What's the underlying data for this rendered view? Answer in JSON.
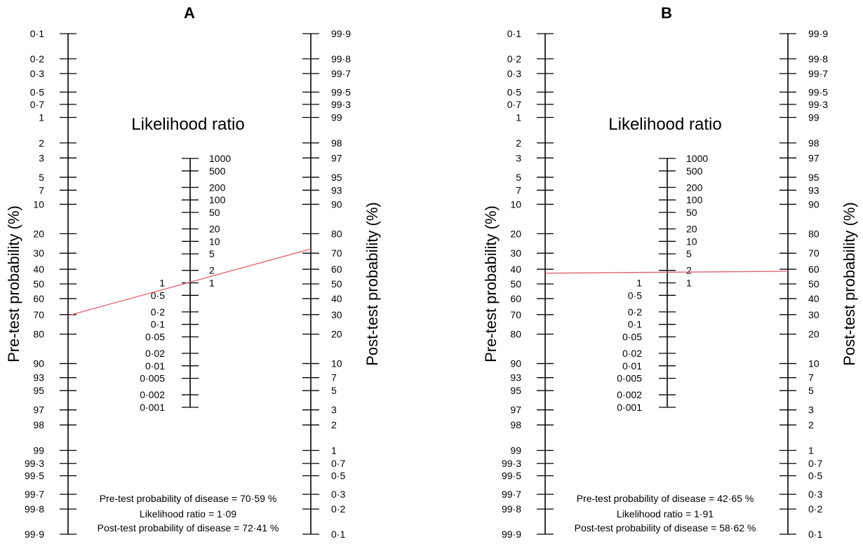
{
  "panels": [
    {
      "panel_label": "A",
      "lr_title": "Likelihood ratio",
      "left_axis_label": "Pre-test probability (%)",
      "right_axis_label": "Post-test probability (%)",
      "results": {
        "pretest_label": "Pre-test probability of disease",
        "pretest_value": "70·59 %",
        "lr_label": "Likelihood ratio",
        "lr_value": "1·09",
        "posttest_label": "Post-test probability of disease",
        "posttest_value": "72·41 %"
      },
      "line": {
        "pretest": 70.59,
        "likelihood_ratio": 1.09,
        "posttest": 72.41
      }
    },
    {
      "panel_label": "B",
      "lr_title": "Likelihood ratio",
      "left_axis_label": "Pre-test probability (%)",
      "right_axis_label": "Post-test probability (%)",
      "results": {
        "pretest_label": "Pre-test probability of disease",
        "pretest_value": "42·65 %",
        "lr_label": "Likelihood ratio",
        "lr_value": "1·91",
        "posttest_label": "Post-test probability of disease",
        "posttest_value": "58·62 %"
      },
      "line": {
        "pretest": 42.65,
        "likelihood_ratio": 1.91,
        "posttest": 58.62
      }
    }
  ],
  "pretest_ticks": [
    {
      "value": 0.1,
      "label": "0·1"
    },
    {
      "value": 0.2,
      "label": "0·2"
    },
    {
      "value": 0.3,
      "label": "0·3"
    },
    {
      "value": 0.5,
      "label": "0·5"
    },
    {
      "value": 0.7,
      "label": "0·7"
    },
    {
      "value": 1,
      "label": "1"
    },
    {
      "value": 2,
      "label": "2"
    },
    {
      "value": 3,
      "label": "3"
    },
    {
      "value": 5,
      "label": "5"
    },
    {
      "value": 7,
      "label": "7"
    },
    {
      "value": 10,
      "label": "10"
    },
    {
      "value": 20,
      "label": "20"
    },
    {
      "value": 30,
      "label": "30"
    },
    {
      "value": 40,
      "label": "40"
    },
    {
      "value": 50,
      "label": "50"
    },
    {
      "value": 60,
      "label": "60"
    },
    {
      "value": 70,
      "label": "70"
    },
    {
      "value": 80,
      "label": "80"
    },
    {
      "value": 90,
      "label": "90"
    },
    {
      "value": 93,
      "label": "93"
    },
    {
      "value": 95,
      "label": "95"
    },
    {
      "value": 97,
      "label": "97"
    },
    {
      "value": 98,
      "label": "98"
    },
    {
      "value": 99,
      "label": "99"
    },
    {
      "value": 99.3,
      "label": "99·3"
    },
    {
      "value": 99.5,
      "label": "99·5"
    },
    {
      "value": 99.7,
      "label": "99·7"
    },
    {
      "value": 99.8,
      "label": "99·8"
    },
    {
      "value": 99.9,
      "label": "99·9"
    }
  ],
  "posttest_ticks": [
    {
      "value": 99.9,
      "label": "99·9"
    },
    {
      "value": 99.8,
      "label": "99·8"
    },
    {
      "value": 99.7,
      "label": "99·7"
    },
    {
      "value": 99.5,
      "label": "99·5"
    },
    {
      "value": 99.3,
      "label": "99·3"
    },
    {
      "value": 99,
      "label": "99"
    },
    {
      "value": 98,
      "label": "98"
    },
    {
      "value": 97,
      "label": "97"
    },
    {
      "value": 95,
      "label": "95"
    },
    {
      "value": 93,
      "label": "93"
    },
    {
      "value": 90,
      "label": "90"
    },
    {
      "value": 80,
      "label": "80"
    },
    {
      "value": 70,
      "label": "70"
    },
    {
      "value": 60,
      "label": "60"
    },
    {
      "value": 50,
      "label": "50"
    },
    {
      "value": 40,
      "label": "40"
    },
    {
      "value": 30,
      "label": "30"
    },
    {
      "value": 20,
      "label": "20"
    },
    {
      "value": 10,
      "label": "10"
    },
    {
      "value": 7,
      "label": "7"
    },
    {
      "value": 5,
      "label": "5"
    },
    {
      "value": 3,
      "label": "3"
    },
    {
      "value": 2,
      "label": "2"
    },
    {
      "value": 1,
      "label": "1"
    },
    {
      "value": 0.7,
      "label": "0·7"
    },
    {
      "value": 0.5,
      "label": "0·5"
    },
    {
      "value": 0.3,
      "label": "0·3"
    },
    {
      "value": 0.2,
      "label": "0·2"
    },
    {
      "value": 0.1,
      "label": "0·1"
    }
  ],
  "lr_ticks_high": [
    {
      "value": 1000,
      "label": "1000"
    },
    {
      "value": 500,
      "label": "500"
    },
    {
      "value": 200,
      "label": "200"
    },
    {
      "value": 100,
      "label": "100"
    },
    {
      "value": 50,
      "label": "50"
    },
    {
      "value": 20,
      "label": "20"
    },
    {
      "value": 10,
      "label": "10"
    },
    {
      "value": 5,
      "label": "5"
    },
    {
      "value": 2,
      "label": "2"
    },
    {
      "value": 1,
      "label": "1"
    }
  ],
  "lr_ticks_low": [
    {
      "value": 1,
      "label": "1"
    },
    {
      "value": 0.5,
      "label": "0·5"
    },
    {
      "value": 0.2,
      "label": "0·2"
    },
    {
      "value": 0.1,
      "label": "0·1"
    },
    {
      "value": 0.05,
      "label": "0·05"
    },
    {
      "value": 0.02,
      "label": "0·02"
    },
    {
      "value": 0.01,
      "label": "0·01"
    },
    {
      "value": 0.005,
      "label": "0·005"
    },
    {
      "value": 0.002,
      "label": "0·002"
    },
    {
      "value": 0.001,
      "label": "0·001"
    }
  ],
  "colors": {
    "line": "#e06070",
    "axis": "#000000"
  }
}
